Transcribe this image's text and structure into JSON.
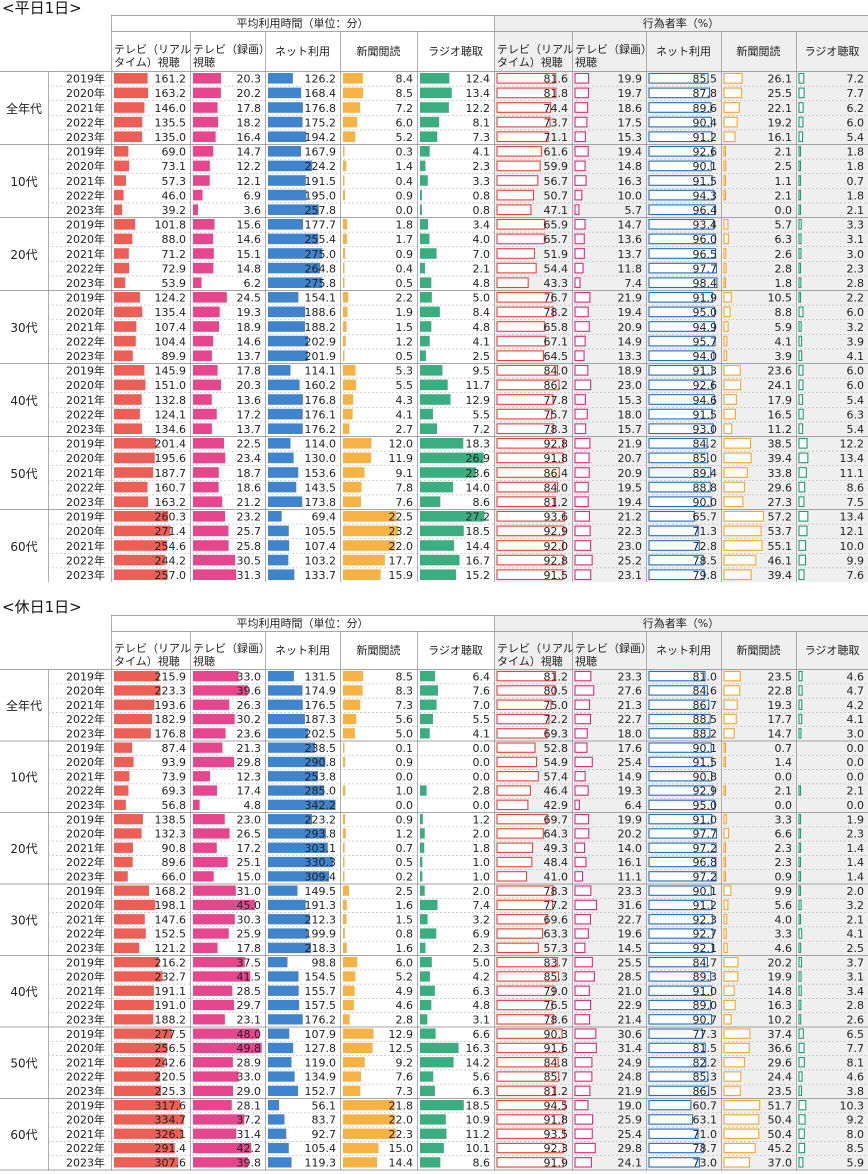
{
  "sections": [
    {
      "title": "<平日1日>",
      "group_time": "平均利用時間（単位：分）",
      "group_rate": "行為者率（%）",
      "col_heads": [
        "テレビ（リアル\nタイム）視聴",
        "テレビ（録画）\n視聴",
        "ネット利用",
        "新聞閲読",
        "ラジオ聴取"
      ],
      "rate_heads": [
        "テレビ（リアル\nタイム）視聴",
        "テレビ（録画）\n視聴",
        "ネット利用",
        "新聞閲読",
        "ラジオ聴取"
      ]
    },
    {
      "title": "<休日1日>",
      "group_time": "平均利用時間（単位：分）",
      "group_rate": "行為者率（%）",
      "col_heads": [
        "テレビ（リアル\nタイム）視聴",
        "テレビ（録画）\n視聴",
        "ネット利用",
        "新聞閲読",
        "ラジオ聴取"
      ],
      "rate_heads": [
        "テレビ（リアル\nタイム）視聴",
        "テレビ（録画）\n視聴",
        "ネット利用",
        "新聞閲読",
        "ラジオ聴取"
      ]
    }
  ],
  "colors": {
    "tv_real": "#e8433a",
    "tv_rec": "#e0267a",
    "net": "#1f6fc4",
    "news": "#f5a623",
    "radio": "#17a06a",
    "rate_bg": "#efefef",
    "grid": "#999999"
  },
  "chart_data": [
    {
      "type": "table",
      "title": "<平日1日>",
      "groups": [
        "全年代",
        "10代",
        "20代",
        "30代",
        "40代",
        "50代",
        "60代"
      ],
      "years": [
        "2019年",
        "2020年",
        "2021年",
        "2022年",
        "2023年"
      ],
      "rows": [
        {
          "time": [
            161.2,
            20.3,
            126.2,
            8.4,
            12.4
          ],
          "rate": [
            81.6,
            19.9,
            85.5,
            26.1,
            7.2
          ]
        },
        {
          "time": [
            163.2,
            20.2,
            168.4,
            8.5,
            13.4
          ],
          "rate": [
            81.8,
            19.7,
            87.8,
            25.5,
            7.7
          ]
        },
        {
          "time": [
            146.0,
            17.8,
            176.8,
            7.2,
            12.2
          ],
          "rate": [
            74.4,
            18.6,
            89.6,
            22.1,
            6.2
          ]
        },
        {
          "time": [
            135.5,
            18.2,
            175.2,
            6.0,
            8.1
          ],
          "rate": [
            73.7,
            17.5,
            90.4,
            19.2,
            6.0
          ]
        },
        {
          "time": [
            135.0,
            16.4,
            194.2,
            5.2,
            7.3
          ],
          "rate": [
            71.1,
            15.3,
            91.2,
            16.1,
            5.4
          ]
        },
        {
          "time": [
            69.0,
            14.7,
            167.9,
            0.3,
            4.1
          ],
          "rate": [
            61.6,
            19.4,
            92.6,
            2.1,
            1.8
          ]
        },
        {
          "time": [
            73.1,
            12.2,
            224.2,
            1.4,
            2.3
          ],
          "rate": [
            59.9,
            14.8,
            90.1,
            2.5,
            1.8
          ]
        },
        {
          "time": [
            57.3,
            12.1,
            191.5,
            0.4,
            3.3
          ],
          "rate": [
            56.7,
            16.3,
            91.5,
            1.1,
            0.7
          ]
        },
        {
          "time": [
            46.0,
            6.9,
            195.0,
            0.9,
            0.8
          ],
          "rate": [
            50.7,
            10.0,
            94.3,
            2.1,
            1.8
          ]
        },
        {
          "time": [
            39.2,
            3.6,
            257.8,
            0.0,
            0.8
          ],
          "rate": [
            47.1,
            5.7,
            96.4,
            0.0,
            2.1
          ]
        },
        {
          "time": [
            101.8,
            15.6,
            177.7,
            1.8,
            3.4
          ],
          "rate": [
            65.9,
            14.7,
            93.4,
            5.7,
            3.3
          ]
        },
        {
          "time": [
            88.0,
            14.6,
            255.4,
            1.7,
            4.0
          ],
          "rate": [
            65.7,
            13.6,
            96.0,
            6.3,
            3.1
          ]
        },
        {
          "time": [
            71.2,
            15.1,
            275.0,
            0.9,
            7.0
          ],
          "rate": [
            51.9,
            13.7,
            96.5,
            2.6,
            3.0
          ]
        },
        {
          "time": [
            72.9,
            14.8,
            264.8,
            0.4,
            2.1
          ],
          "rate": [
            54.4,
            11.8,
            97.7,
            2.8,
            2.3
          ]
        },
        {
          "time": [
            53.9,
            6.2,
            275.8,
            0.5,
            4.8
          ],
          "rate": [
            43.3,
            7.4,
            98.4,
            1.8,
            2.8
          ]
        },
        {
          "time": [
            124.2,
            24.5,
            154.1,
            2.2,
            5.0
          ],
          "rate": [
            76.7,
            21.9,
            91.9,
            10.5,
            2.2
          ]
        },
        {
          "time": [
            135.4,
            19.3,
            188.6,
            1.9,
            8.4
          ],
          "rate": [
            78.2,
            19.4,
            95.0,
            8.8,
            6.0
          ]
        },
        {
          "time": [
            107.4,
            18.9,
            188.2,
            1.5,
            4.8
          ],
          "rate": [
            65.8,
            20.9,
            94.9,
            5.9,
            3.2
          ]
        },
        {
          "time": [
            104.4,
            14.6,
            202.9,
            1.2,
            4.1
          ],
          "rate": [
            67.1,
            14.9,
            95.7,
            4.1,
            3.9
          ]
        },
        {
          "time": [
            89.9,
            13.7,
            201.9,
            0.5,
            2.5
          ],
          "rate": [
            64.5,
            13.3,
            94.0,
            3.9,
            4.1
          ]
        },
        {
          "time": [
            145.9,
            17.8,
            114.1,
            5.3,
            9.5
          ],
          "rate": [
            84.0,
            18.9,
            91.3,
            23.6,
            6.0
          ]
        },
        {
          "time": [
            151.0,
            20.3,
            160.2,
            5.5,
            11.7
          ],
          "rate": [
            86.2,
            23.0,
            92.6,
            24.1,
            6.0
          ]
        },
        {
          "time": [
            132.8,
            13.6,
            176.8,
            4.3,
            12.9
          ],
          "rate": [
            77.8,
            15.3,
            94.6,
            17.9,
            5.4
          ]
        },
        {
          "time": [
            124.1,
            17.2,
            176.1,
            4.1,
            5.5
          ],
          "rate": [
            75.7,
            18.0,
            91.5,
            16.5,
            6.3
          ]
        },
        {
          "time": [
            134.6,
            13.7,
            176.2,
            2.7,
            7.2
          ],
          "rate": [
            78.3,
            15.7,
            93.0,
            11.2,
            5.4
          ]
        },
        {
          "time": [
            201.4,
            22.5,
            114.0,
            12.0,
            18.3
          ],
          "rate": [
            92.8,
            21.9,
            84.2,
            38.5,
            12.2
          ]
        },
        {
          "time": [
            195.6,
            23.4,
            130.0,
            11.9,
            26.9
          ],
          "rate": [
            91.8,
            20.7,
            85.0,
            39.4,
            13.4
          ]
        },
        {
          "time": [
            187.7,
            18.7,
            153.6,
            9.1,
            23.6
          ],
          "rate": [
            86.4,
            20.9,
            89.4,
            33.8,
            11.1
          ]
        },
        {
          "time": [
            160.7,
            18.6,
            143.5,
            7.8,
            14.0
          ],
          "rate": [
            84.0,
            19.5,
            88.8,
            29.6,
            8.6
          ]
        },
        {
          "time": [
            163.2,
            21.2,
            173.8,
            7.6,
            8.6
          ],
          "rate": [
            81.2,
            19.4,
            90.0,
            27.3,
            7.5
          ]
        },
        {
          "time": [
            260.3,
            23.2,
            69.4,
            22.5,
            27.2
          ],
          "rate": [
            93.6,
            21.2,
            65.7,
            57.2,
            13.4
          ]
        },
        {
          "time": [
            271.4,
            25.7,
            105.5,
            23.2,
            18.5
          ],
          "rate": [
            92.9,
            22.3,
            71.3,
            53.7,
            12.1
          ]
        },
        {
          "time": [
            254.6,
            25.8,
            107.4,
            22.0,
            14.4
          ],
          "rate": [
            92.0,
            23.0,
            72.8,
            55.1,
            10.0
          ]
        },
        {
          "time": [
            244.2,
            30.5,
            103.2,
            17.7,
            16.7
          ],
          "rate": [
            92.8,
            25.2,
            78.5,
            46.1,
            9.9
          ]
        },
        {
          "time": [
            257.0,
            31.3,
            133.7,
            15.9,
            15.2
          ],
          "rate": [
            91.5,
            23.1,
            79.8,
            39.4,
            7.6
          ]
        }
      ]
    },
    {
      "type": "table",
      "title": "<休日1日>",
      "groups": [
        "全年代",
        "10代",
        "20代",
        "30代",
        "40代",
        "50代",
        "60代"
      ],
      "years": [
        "2019年",
        "2020年",
        "2021年",
        "2022年",
        "2023年"
      ],
      "rows": [
        {
          "time": [
            215.9,
            33.0,
            131.5,
            8.5,
            6.4
          ],
          "rate": [
            81.2,
            23.3,
            81.0,
            23.5,
            4.6
          ]
        },
        {
          "time": [
            223.3,
            39.6,
            174.9,
            8.3,
            7.6
          ],
          "rate": [
            80.5,
            27.6,
            84.6,
            22.8,
            4.7
          ]
        },
        {
          "time": [
            193.6,
            26.3,
            176.5,
            7.3,
            7.0
          ],
          "rate": [
            75.0,
            21.3,
            86.7,
            19.3,
            4.2
          ]
        },
        {
          "time": [
            182.9,
            30.2,
            187.3,
            5.6,
            5.5
          ],
          "rate": [
            72.2,
            22.7,
            88.5,
            17.7,
            4.1
          ]
        },
        {
          "time": [
            176.8,
            23.6,
            202.5,
            5.0,
            4.1
          ],
          "rate": [
            69.3,
            18.0,
            88.2,
            14.7,
            3.0
          ]
        },
        {
          "time": [
            87.4,
            21.3,
            238.5,
            0.1,
            0.0
          ],
          "rate": [
            52.8,
            17.6,
            90.1,
            0.7,
            0.0
          ]
        },
        {
          "time": [
            93.9,
            29.8,
            290.8,
            0.9,
            0.0
          ],
          "rate": [
            54.9,
            25.4,
            91.5,
            1.4,
            0.0
          ]
        },
        {
          "time": [
            73.9,
            12.3,
            253.8,
            0.0,
            0.0
          ],
          "rate": [
            57.4,
            14.9,
            90.8,
            0.0,
            0.0
          ]
        },
        {
          "time": [
            69.3,
            17.4,
            285.0,
            1.0,
            2.8
          ],
          "rate": [
            46.4,
            19.3,
            92.9,
            2.1,
            2.1
          ]
        },
        {
          "time": [
            56.8,
            4.8,
            342.2,
            0.0,
            0.0
          ],
          "rate": [
            42.9,
            6.4,
            95.0,
            0.0,
            0.0
          ]
        },
        {
          "time": [
            138.5,
            23.0,
            223.2,
            0.9,
            1.2
          ],
          "rate": [
            69.7,
            19.9,
            91.0,
            3.3,
            1.9
          ]
        },
        {
          "time": [
            132.3,
            26.5,
            293.8,
            1.2,
            2.0
          ],
          "rate": [
            64.3,
            20.2,
            97.7,
            6.6,
            2.3
          ]
        },
        {
          "time": [
            90.8,
            17.2,
            303.1,
            0.7,
            1.8
          ],
          "rate": [
            49.3,
            14.0,
            97.2,
            2.3,
            1.4
          ]
        },
        {
          "time": [
            89.6,
            25.1,
            330.3,
            0.5,
            1.0
          ],
          "rate": [
            48.4,
            16.1,
            96.8,
            2.3,
            1.4
          ]
        },
        {
          "time": [
            66.0,
            15.0,
            309.4,
            0.2,
            1.0
          ],
          "rate": [
            41.0,
            11.1,
            97.2,
            0.9,
            1.4
          ]
        },
        {
          "time": [
            168.2,
            31.0,
            149.5,
            2.5,
            2.0
          ],
          "rate": [
            78.3,
            23.3,
            90.1,
            9.9,
            2.0
          ]
        },
        {
          "time": [
            198.1,
            45.0,
            191.3,
            1.6,
            7.4
          ],
          "rate": [
            77.2,
            31.6,
            91.2,
            5.6,
            3.2
          ]
        },
        {
          "time": [
            147.6,
            30.3,
            212.3,
            1.5,
            3.2
          ],
          "rate": [
            69.6,
            22.7,
            92.3,
            4.0,
            2.1
          ]
        },
        {
          "time": [
            152.5,
            25.9,
            199.9,
            0.8,
            6.9
          ],
          "rate": [
            63.3,
            19.6,
            92.7,
            3.3,
            4.1
          ]
        },
        {
          "time": [
            121.2,
            17.8,
            218.3,
            1.6,
            2.3
          ],
          "rate": [
            57.3,
            14.5,
            92.1,
            4.6,
            2.5
          ]
        },
        {
          "time": [
            216.2,
            37.5,
            98.8,
            6.0,
            5.0
          ],
          "rate": [
            83.7,
            25.5,
            84.7,
            20.2,
            3.7
          ]
        },
        {
          "time": [
            232.7,
            41.5,
            154.5,
            5.2,
            4.2
          ],
          "rate": [
            85.3,
            28.5,
            89.3,
            19.9,
            3.1
          ]
        },
        {
          "time": [
            191.1,
            28.5,
            155.7,
            4.9,
            6.3
          ],
          "rate": [
            79.0,
            21.0,
            91.0,
            14.8,
            3.4
          ]
        },
        {
          "time": [
            191.0,
            29.7,
            157.5,
            4.6,
            4.8
          ],
          "rate": [
            76.5,
            22.9,
            89.0,
            16.3,
            2.8
          ]
        },
        {
          "time": [
            188.2,
            23.1,
            176.2,
            2.8,
            3.1
          ],
          "rate": [
            78.6,
            21.4,
            90.7,
            10.2,
            2.6
          ]
        },
        {
          "time": [
            277.5,
            48.0,
            107.9,
            12.9,
            6.6
          ],
          "rate": [
            90.3,
            30.6,
            77.3,
            37.4,
            6.5
          ]
        },
        {
          "time": [
            256.5,
            49.8,
            127.8,
            12.5,
            16.3
          ],
          "rate": [
            91.6,
            31.4,
            81.5,
            36.6,
            7.7
          ]
        },
        {
          "time": [
            242.6,
            28.9,
            119.0,
            9.2,
            14.2
          ],
          "rate": [
            84.8,
            24.9,
            82.2,
            29.6,
            8.1
          ]
        },
        {
          "time": [
            220.5,
            33.0,
            134.9,
            7.6,
            5.6
          ],
          "rate": [
            85.7,
            24.8,
            85.3,
            24.4,
            4.6
          ]
        },
        {
          "time": [
            225.3,
            29.0,
            152.7,
            7.3,
            6.3
          ],
          "rate": [
            81.2,
            21.9,
            86.5,
            23.5,
            3.8
          ]
        },
        {
          "time": [
            317.6,
            28.1,
            56.1,
            21.8,
            18.5
          ],
          "rate": [
            94.5,
            19.0,
            60.7,
            51.7,
            10.3
          ]
        },
        {
          "time": [
            334.7,
            37.2,
            83.7,
            22.0,
            10.9
          ],
          "rate": [
            91.8,
            25.9,
            63.1,
            50.4,
            9.2
          ]
        },
        {
          "time": [
            326.1,
            31.4,
            92.7,
            22.3,
            11.2
          ],
          "rate": [
            93.5,
            25.4,
            71.0,
            50.4,
            8.0
          ]
        },
        {
          "time": [
            291.4,
            42.2,
            105.4,
            15.0,
            10.1
          ],
          "rate": [
            92.3,
            29.8,
            78.7,
            45.2,
            8.5
          ]
        },
        {
          "time": [
            307.6,
            39.8,
            119.3,
            14.4,
            8.6
          ],
          "rate": [
            91.9,
            24.1,
            73.0,
            37.0,
            5.9
          ]
        }
      ]
    }
  ]
}
